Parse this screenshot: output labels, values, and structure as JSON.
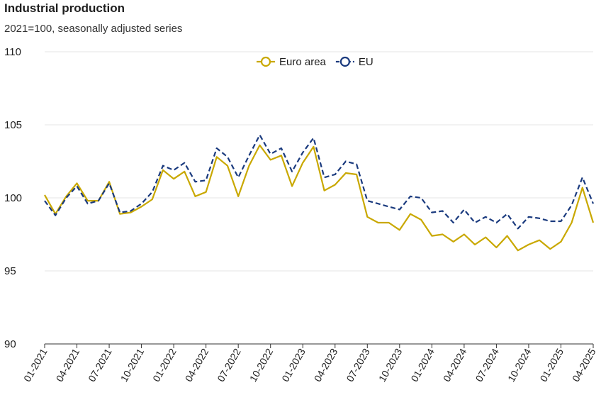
{
  "chart_data": {
    "type": "line",
    "title": "Industrial production",
    "subtitle": "2021=100, seasonally adjusted series",
    "ylim": [
      90,
      110
    ],
    "yticks": [
      90,
      95,
      100,
      105,
      110
    ],
    "xtick_labels": [
      "01-2021",
      "04-2021",
      "07-2021",
      "10-2021",
      "01-2022",
      "04-2022",
      "07-2022",
      "10-2022",
      "01-2023",
      "04-2023",
      "07-2023",
      "10-2023",
      "01-2024",
      "04-2024",
      "07-2024",
      "10-2024",
      "01-2025",
      "04-2025"
    ],
    "x": [
      "01-2021",
      "02-2021",
      "03-2021",
      "04-2021",
      "05-2021",
      "06-2021",
      "07-2021",
      "08-2021",
      "09-2021",
      "10-2021",
      "11-2021",
      "12-2021",
      "01-2022",
      "02-2022",
      "03-2022",
      "04-2022",
      "05-2022",
      "06-2022",
      "07-2022",
      "08-2022",
      "09-2022",
      "10-2022",
      "11-2022",
      "12-2022",
      "01-2023",
      "02-2023",
      "03-2023",
      "04-2023",
      "05-2023",
      "06-2023",
      "07-2023",
      "08-2023",
      "09-2023",
      "10-2023",
      "11-2023",
      "12-2023",
      "01-2024",
      "02-2024",
      "03-2024",
      "04-2024",
      "05-2024",
      "06-2024",
      "07-2024",
      "08-2024",
      "09-2024",
      "10-2024",
      "11-2024",
      "12-2024",
      "01-2025",
      "02-2025",
      "03-2025",
      "04-2025"
    ],
    "grid": true,
    "legend_position": "top-center",
    "series": [
      {
        "name": "Euro area",
        "color": "#c9a800",
        "dash": "solid",
        "values": [
          100.2,
          98.9,
          100.1,
          101.0,
          99.8,
          99.8,
          101.1,
          98.9,
          99.0,
          99.4,
          99.9,
          101.9,
          101.3,
          101.8,
          100.1,
          100.4,
          102.8,
          102.2,
          100.1,
          102.2,
          103.6,
          102.6,
          102.9,
          100.8,
          102.4,
          103.5,
          100.5,
          100.9,
          101.7,
          101.6,
          98.7,
          98.3,
          98.3,
          97.8,
          98.9,
          98.5,
          97.4,
          97.5,
          97.0,
          97.5,
          96.8,
          97.3,
          96.6,
          97.4,
          96.4,
          96.8,
          97.1,
          96.5,
          97.0,
          98.3,
          100.7,
          98.3
        ]
      },
      {
        "name": "EU",
        "color": "#1a3a7e",
        "dash": "dashed",
        "values": [
          99.8,
          98.8,
          100.0,
          100.8,
          99.6,
          99.8,
          101.0,
          99.0,
          99.1,
          99.6,
          100.4,
          102.2,
          101.9,
          102.4,
          101.1,
          101.2,
          103.4,
          102.8,
          101.4,
          102.9,
          104.3,
          103.0,
          103.4,
          101.8,
          103.1,
          104.1,
          101.4,
          101.6,
          102.5,
          102.3,
          99.8,
          99.6,
          99.4,
          99.2,
          100.1,
          100.0,
          99.0,
          99.1,
          98.3,
          99.2,
          98.3,
          98.7,
          98.3,
          98.9,
          97.9,
          98.7,
          98.6,
          98.4,
          98.4,
          99.5,
          101.4,
          99.6
        ]
      }
    ]
  }
}
